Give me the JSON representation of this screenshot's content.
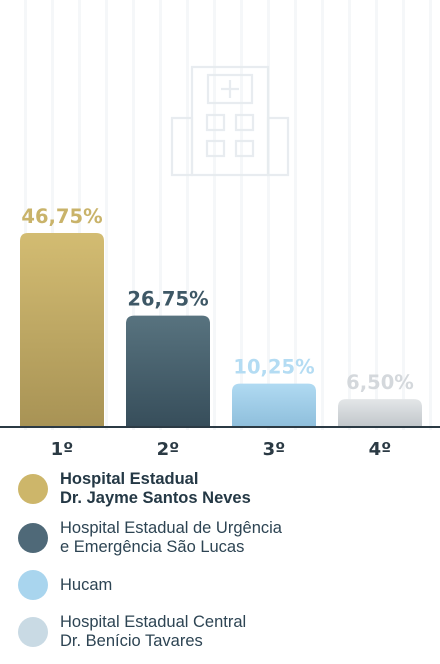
{
  "chart_data": {
    "type": "bar",
    "categories": [
      "1º",
      "2º",
      "3º",
      "4º"
    ],
    "values": [
      46.75,
      26.75,
      10.25,
      6.5
    ],
    "value_labels": [
      "46,75%",
      "26,75%",
      "10,25%",
      "6,50%"
    ],
    "ylim": [
      0,
      50
    ],
    "grid": false,
    "legend_position": "bottom",
    "colors": [
      "#c4ae66",
      "#4e6978",
      "#a9d4ee",
      "#d3d7da"
    ],
    "label_colors": [
      "#c9b36a",
      "#3e5866",
      "#b4dcf3",
      "#d4d8dc"
    ],
    "series_names": [
      "Hospital Estadual\nDr. Jayme Santos Neves",
      "Hospital Estadual de Urgência\ne Emergência São Lucas",
      "Hucam",
      "Hospital Estadual Central\nDr. Benício Tavares"
    ]
  },
  "legend": {
    "items": [
      {
        "label": "Hospital Estadual\nDr. Jayme Santos Neves",
        "color": "#cdb66a",
        "bold": true
      },
      {
        "label": "Hospital Estadual de Urgência\ne Emergência São Lucas",
        "color": "#4f6978",
        "bold": false
      },
      {
        "label": "Hucam",
        "color": "#a9d5ee",
        "bold": false
      },
      {
        "label": "Hospital Estadual Central\nDr. Benício Tavares",
        "color": "#c9dae4",
        "bold": false
      }
    ]
  },
  "icons": {
    "background": "hospital-building-icon"
  }
}
